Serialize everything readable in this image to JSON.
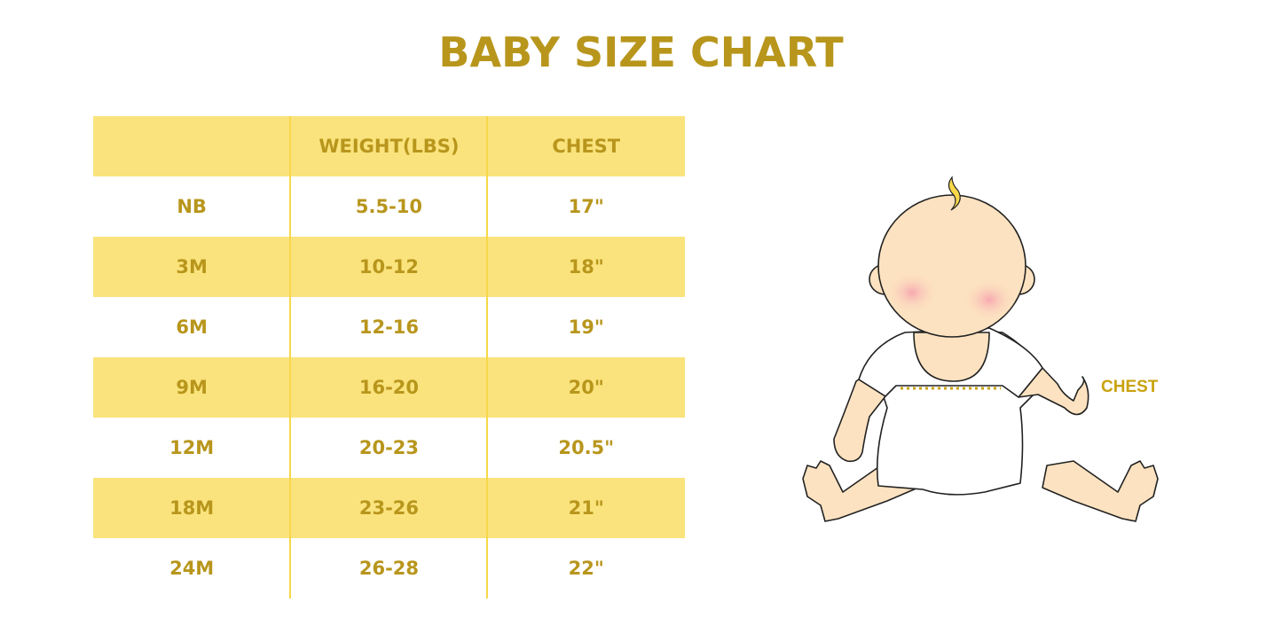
{
  "title": "BABY SIZE CHART",
  "colors": {
    "accent_text": "#B8961C",
    "row_fill": "#FAE37C",
    "divider": "#F8D84A"
  },
  "table": {
    "headers": [
      "",
      "WEIGHT(LBS)",
      "CHEST"
    ],
    "rows": [
      [
        "NB",
        "5.5-10",
        "17\""
      ],
      [
        "3M",
        "10-12",
        "18\""
      ],
      [
        "6M",
        "12-16",
        "19\""
      ],
      [
        "9M",
        "16-20",
        "20\""
      ],
      [
        "12M",
        "20-23",
        "20.5\""
      ],
      [
        "18M",
        "23-26",
        "21\""
      ],
      [
        "24M",
        "26-28",
        "22\""
      ]
    ]
  },
  "illustration": {
    "chest_label": "CHEST"
  }
}
